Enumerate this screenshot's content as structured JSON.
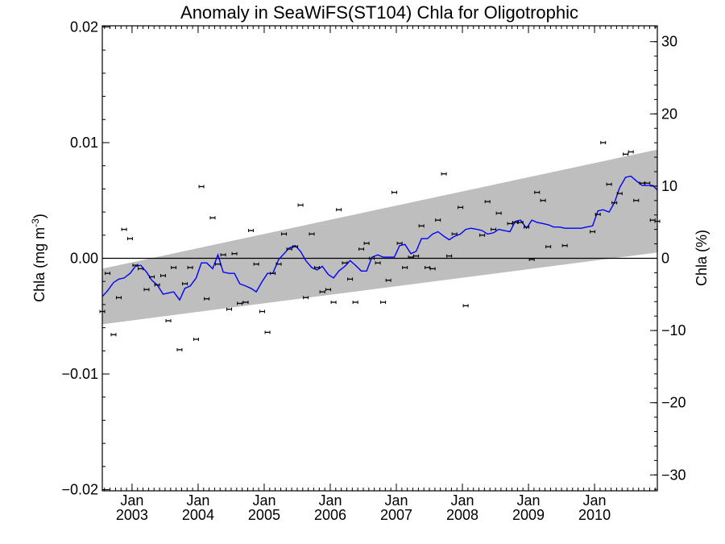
{
  "chart_data": {
    "type": "line",
    "title": "Anomaly in SeaWiFS(ST104) Chla for Oligotrophic",
    "ylabel_left": "Chla (mg m",
    "ylabel_left_sup": "-3",
    "ylabel_left_close": ")",
    "ylabel_right": "Chla (%)",
    "xlim": [
      2002.55,
      2010.95
    ],
    "ylim": [
      -0.0201,
      0.0201
    ],
    "ylim_right": [
      -32.2,
      32.2
    ],
    "yticks_left": [
      -0.02,
      -0.01,
      0.0,
      0.01,
      0.02
    ],
    "yticks_left_labels": [
      "−0.02",
      "−0.01",
      "0.00",
      "0.01",
      "0.02"
    ],
    "yticks_right": [
      -30,
      -20,
      -10,
      0,
      10,
      20,
      30
    ],
    "yticks_right_labels": [
      "−30",
      "−20",
      "−10",
      "0",
      "10",
      "20",
      "30"
    ],
    "xticks": [
      2003,
      2004,
      2005,
      2006,
      2007,
      2008,
      2009,
      2010
    ],
    "xtick_month_label": "Jan",
    "xtick_year_labels": [
      "2003",
      "2004",
      "2005",
      "2006",
      "2007",
      "2008",
      "2009",
      "2010"
    ],
    "zero_line": 0.0,
    "band": {
      "x": [
        2002.55,
        2010.95
      ],
      "lower": [
        -0.0057,
        0.0005
      ],
      "upper": [
        -0.0009,
        0.0094
      ],
      "color": "#bebebe"
    },
    "trend_series": {
      "color": "#0000ff",
      "x": [
        2002.55,
        2002.63,
        2002.72,
        2002.8,
        2002.88,
        2002.97,
        2003.05,
        2003.13,
        2003.22,
        2003.3,
        2003.38,
        2003.47,
        2003.55,
        2003.63,
        2003.72,
        2003.8,
        2003.88,
        2003.97,
        2004.05,
        2004.13,
        2004.22,
        2004.3,
        2004.38,
        2004.47,
        2004.55,
        2004.63,
        2004.72,
        2004.8,
        2004.88,
        2004.97,
        2005.05,
        2005.13,
        2005.22,
        2005.3,
        2005.38,
        2005.47,
        2005.55,
        2005.63,
        2005.72,
        2005.8,
        2005.88,
        2005.97,
        2006.05,
        2006.13,
        2006.22,
        2006.3,
        2006.38,
        2006.47,
        2006.55,
        2006.63,
        2006.72,
        2006.8,
        2006.88,
        2006.97,
        2007.05,
        2007.13,
        2007.22,
        2007.3,
        2007.38,
        2007.47,
        2007.55,
        2007.63,
        2007.72,
        2007.8,
        2007.88,
        2007.97,
        2008.05,
        2008.13,
        2008.22,
        2008.3,
        2008.38,
        2008.47,
        2008.55,
        2008.63,
        2008.72,
        2008.8,
        2008.88,
        2008.97,
        2009.05,
        2009.13,
        2009.22,
        2009.3,
        2009.38,
        2009.47,
        2009.55,
        2009.63,
        2009.72,
        2009.8,
        2009.88,
        2009.97,
        2010.05,
        2010.13,
        2010.22,
        2010.3,
        2010.38,
        2010.47,
        2010.55,
        2010.63,
        2010.72,
        2010.8,
        2010.88,
        2010.95
      ],
      "y": [
        -0.0033,
        -0.0028,
        -0.0021,
        -0.0018,
        -0.0017,
        -0.0013,
        -0.0007,
        -0.0006,
        -0.0012,
        -0.0019,
        -0.0023,
        -0.0031,
        -0.003,
        -0.0029,
        -0.0036,
        -0.0026,
        -0.0024,
        -0.0017,
        -0.0004,
        -0.0004,
        -0.0009,
        0.0003,
        -0.0012,
        -0.0013,
        -0.0013,
        -0.0022,
        -0.0024,
        -0.0026,
        -0.0029,
        -0.002,
        -0.0013,
        -0.0013,
        -0.0001,
        0.0004,
        0.0009,
        0.0011,
        0.0006,
        -0.0002,
        -0.0008,
        -0.001,
        -0.0007,
        -0.0014,
        -0.0017,
        -0.0011,
        -0.0007,
        -0.0002,
        -0.0006,
        -0.0011,
        -0.0011,
        0.0001,
        0.0003,
        0.0001,
        0.0001,
        0.0001,
        0.0011,
        0.0012,
        0.0004,
        0.0006,
        0.0017,
        0.0017,
        0.0021,
        0.0023,
        0.0019,
        0.0016,
        0.0019,
        0.0021,
        0.0025,
        0.0026,
        0.0025,
        0.0024,
        0.0021,
        0.0022,
        0.0025,
        0.0024,
        0.0023,
        0.0032,
        0.0033,
        0.0026,
        0.0033,
        0.0031,
        0.003,
        0.0029,
        0.0027,
        0.0027,
        0.0026,
        0.0026,
        0.0026,
        0.0026,
        0.0027,
        0.0028,
        0.0041,
        0.0042,
        0.004,
        0.0048,
        0.0061,
        0.007,
        0.0071,
        0.0067,
        0.0063,
        0.0063,
        0.0063,
        0.0059
      ]
    },
    "monthly_points": {
      "color": "#000000",
      "x": [
        2002.55,
        2002.63,
        2002.72,
        2002.8,
        2002.88,
        2002.97,
        2003.05,
        2003.13,
        2003.22,
        2003.3,
        2003.38,
        2003.47,
        2003.55,
        2003.63,
        2003.72,
        2003.8,
        2003.88,
        2003.97,
        2004.05,
        2004.13,
        2004.22,
        2004.3,
        2004.38,
        2004.47,
        2004.55,
        2004.63,
        2004.72,
        2004.8,
        2004.88,
        2004.97,
        2005.05,
        2005.13,
        2005.22,
        2005.3,
        2005.38,
        2005.47,
        2005.55,
        2005.63,
        2005.72,
        2005.8,
        2005.88,
        2005.97,
        2006.05,
        2006.13,
        2006.22,
        2006.3,
        2006.38,
        2006.47,
        2006.55,
        2006.63,
        2006.72,
        2006.8,
        2006.88,
        2006.97,
        2007.05,
        2007.13,
        2007.22,
        2007.3,
        2007.38,
        2007.47,
        2007.55,
        2007.63,
        2007.72,
        2007.8,
        2007.88,
        2007.97,
        2008.05,
        2008.3,
        2008.38,
        2008.47,
        2008.55,
        2008.72,
        2008.8,
        2008.88,
        2008.97,
        2009.05,
        2009.13,
        2009.22,
        2009.3,
        2009.55,
        2009.97,
        2010.05,
        2010.13,
        2010.22,
        2010.3,
        2010.38,
        2010.47,
        2010.55,
        2010.63,
        2010.72,
        2010.8,
        2010.88,
        2010.95
      ],
      "y": [
        -0.0046,
        -0.0013,
        -0.0066,
        -0.0034,
        0.0025,
        0.0017,
        -0.0006,
        -0.0009,
        -0.0027,
        -0.0016,
        -0.0023,
        -0.0015,
        -0.0054,
        -0.0008,
        -0.0079,
        -0.0022,
        -0.0008,
        -0.007,
        0.0062,
        -0.0035,
        0.0035,
        -0.0005,
        0.0003,
        -0.0044,
        0.0004,
        -0.0039,
        -0.0038,
        0.0024,
        -0.0005,
        -0.0046,
        -0.0064,
        -0.0013,
        -0.0005,
        0.0021,
        0.0008,
        0.001,
        0.0046,
        -0.0034,
        0.0021,
        -0.0008,
        -0.0029,
        -0.0027,
        -0.0038,
        0.0042,
        -0.0004,
        -0.0018,
        -0.0038,
        0.0008,
        0.0013,
        0.0,
        -0.0004,
        -0.0038,
        -0.0019,
        0.0057,
        0.0013,
        -0.0008,
        0.0001,
        0.0002,
        0.0028,
        -0.0008,
        -0.0009,
        0.0033,
        0.0073,
        0.0002,
        0.0021,
        0.0044,
        -0.0041,
        0.002,
        0.0049,
        0.0025,
        0.0039,
        0.003,
        0.0031,
        0.0031,
        0.0027,
        -0.0001,
        0.0057,
        0.005,
        0.001,
        0.0011,
        0.0023,
        0.0038,
        0.01,
        0.0064,
        0.0048,
        0.0056,
        0.009,
        0.0092,
        0.005,
        0.0065,
        0.0065,
        0.0033,
        0.0032
      ]
    }
  }
}
